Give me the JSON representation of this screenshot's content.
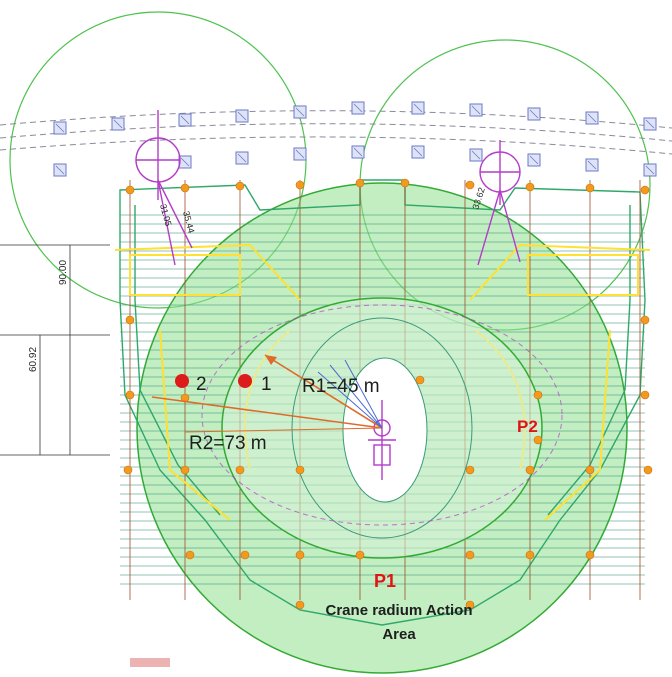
{
  "labels": {
    "point_2": "2",
    "point_1": "1",
    "r1": "R1=45 m",
    "r2": "R2=73 m",
    "p1": "P1",
    "p2": "P2",
    "caption_line1": "Crane radium Action",
    "caption_line2": "Area",
    "dim_90": "90.00",
    "dim_6092": "60.92",
    "crane_dim_a": "31.05",
    "crane_dim_b": "35.44",
    "crane_dim_c": "33.62"
  },
  "colors": {
    "crane_zone_fill": "#8fe08f",
    "crane_zone_stroke": "#33aa33",
    "outer_circle_stroke": "#4fc24f",
    "structure_green": "#2fa86a",
    "yellow_outline": "#ffe033",
    "red_dot": "#dd1b1b",
    "orange_marker": "#f29a1e",
    "radius_line_orange": "#e06a2a",
    "pile_blue": "#6a78c8",
    "crane_magenta": "#b43cc8",
    "label_red": "#e01414",
    "label_dark": "#1e1e1e"
  }
}
